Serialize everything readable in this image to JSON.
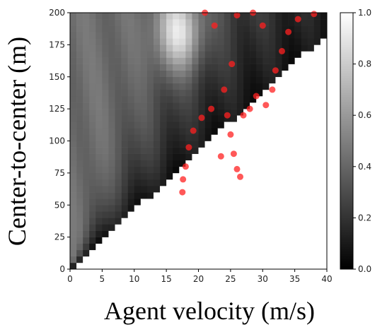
{
  "chart_data": {
    "type": "heatmap",
    "xlabel": "Agent velocity (m/s)",
    "ylabel": "Center-to-center (m)",
    "xlim": [
      0,
      40
    ],
    "ylim": [
      0,
      200
    ],
    "x_ticks": [
      "0",
      "5",
      "10",
      "15",
      "20",
      "25",
      "30",
      "35",
      "40"
    ],
    "y_ticks": [
      "0",
      "25",
      "50",
      "75",
      "100",
      "125",
      "150",
      "175",
      "200"
    ],
    "grid": false,
    "colormap": "gray",
    "colorbar": {
      "range": [
        0.0,
        1.0
      ],
      "ticks": [
        "0.0",
        "0.2",
        "0.4",
        "0.6",
        "0.8",
        "1.0"
      ]
    },
    "overlay": {
      "type": "scatter",
      "color": "#ff2020",
      "points_sample": [
        [
          17.5,
          60
        ],
        [
          17.6,
          70
        ],
        [
          18.0,
          80
        ],
        [
          18.5,
          95
        ],
        [
          19.2,
          108
        ],
        [
          20.5,
          118
        ],
        [
          22.0,
          125
        ],
        [
          23.5,
          88
        ],
        [
          26.5,
          72
        ],
        [
          26.0,
          78
        ],
        [
          25.5,
          90
        ],
        [
          25.0,
          105
        ],
        [
          24.5,
          120
        ],
        [
          24.0,
          140
        ],
        [
          25.2,
          160
        ],
        [
          27.0,
          120
        ],
        [
          28.0,
          125
        ],
        [
          29.0,
          135
        ],
        [
          30.5,
          128
        ],
        [
          31.5,
          140
        ],
        [
          32.0,
          155
        ],
        [
          33.0,
          170
        ],
        [
          34.0,
          185
        ],
        [
          35.5,
          195
        ],
        [
          38.0,
          199
        ],
        [
          21.0,
          200
        ],
        [
          22.5,
          190
        ],
        [
          26.0,
          198
        ],
        [
          28.5,
          200
        ],
        [
          30.0,
          190
        ]
      ]
    }
  }
}
